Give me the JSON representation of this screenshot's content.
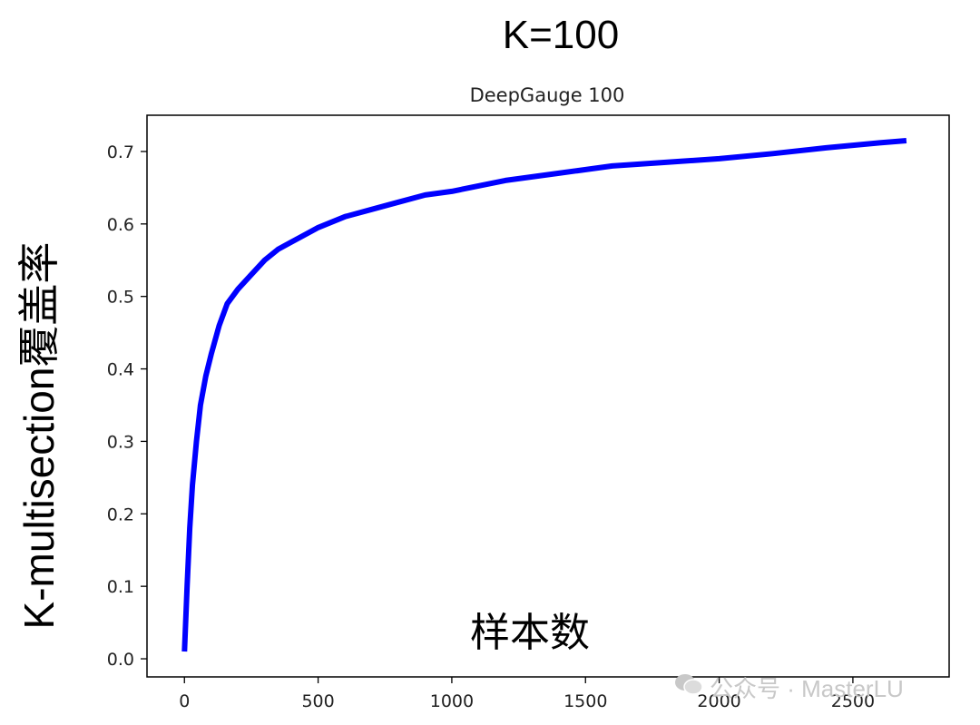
{
  "figure": {
    "main_title": "K=100",
    "y_label": "K-multisection覆盖率",
    "x_label": "样本数",
    "watermark": "公众号 · MasterLU",
    "line_color": "#0000ff"
  },
  "chart_data": {
    "type": "line",
    "title": "DeepGauge 100",
    "xlabel": "样本数",
    "ylabel": "K-multisection覆盖率",
    "xlim": [
      -140,
      2860
    ],
    "ylim": [
      -0.025,
      0.75
    ],
    "xticks": [
      0,
      500,
      1000,
      1500,
      2000,
      2500
    ],
    "xtick_labels": [
      "0",
      "500",
      "1000",
      "1500",
      "2000",
      "2500"
    ],
    "yticks": [
      0.0,
      0.1,
      0.2,
      0.3,
      0.4,
      0.5,
      0.6,
      0.7
    ],
    "ytick_labels": [
      "0.0",
      "0.1",
      "0.2",
      "0.3",
      "0.4",
      "0.5",
      "0.6",
      "0.7"
    ],
    "grid": false,
    "series": [
      {
        "x": [
          0,
          10,
          20,
          30,
          45,
          60,
          80,
          100,
          130,
          160,
          200,
          250,
          300,
          350,
          400,
          500,
          600,
          700,
          800,
          900,
          1000,
          1200,
          1400,
          1600,
          1800,
          2000,
          2200,
          2400,
          2600,
          2700
        ],
        "y": [
          0.01,
          0.1,
          0.18,
          0.24,
          0.3,
          0.35,
          0.39,
          0.42,
          0.46,
          0.49,
          0.51,
          0.53,
          0.55,
          0.565,
          0.575,
          0.595,
          0.61,
          0.62,
          0.63,
          0.64,
          0.645,
          0.66,
          0.67,
          0.68,
          0.685,
          0.69,
          0.697,
          0.705,
          0.712,
          0.715
        ]
      }
    ]
  }
}
